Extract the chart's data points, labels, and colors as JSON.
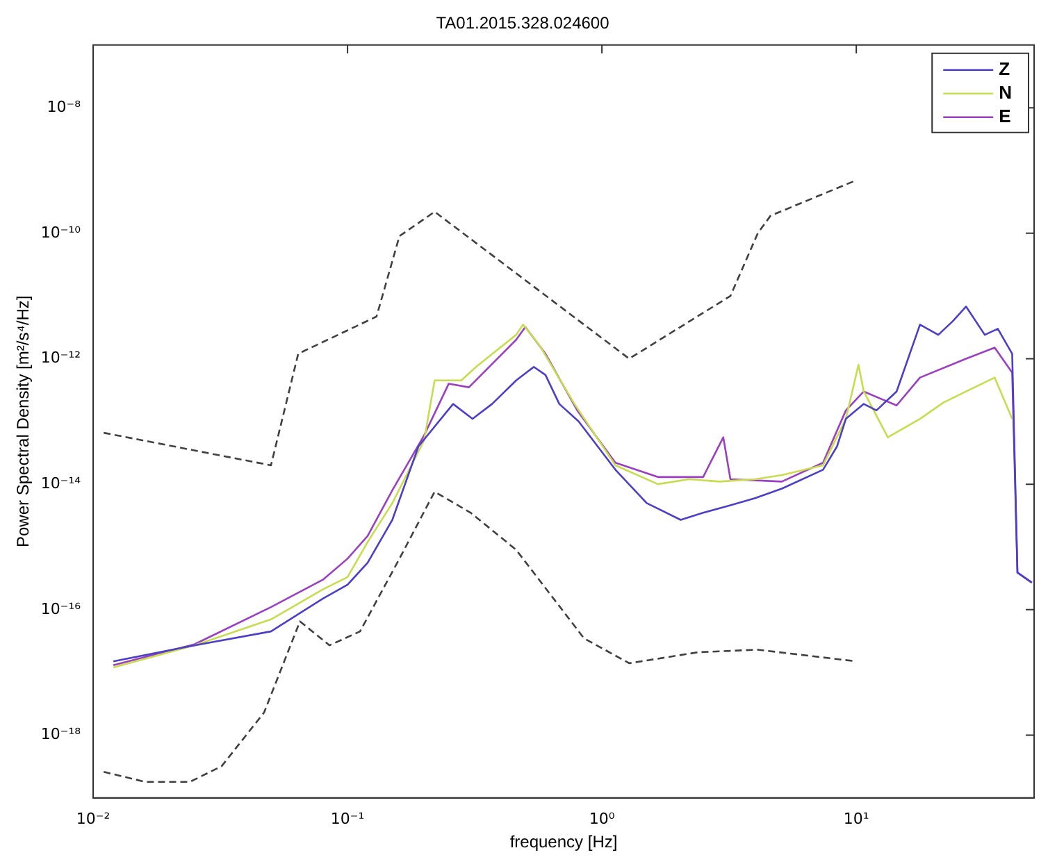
{
  "chart_data": {
    "type": "line",
    "title": "TA01.2015.328.024600",
    "xlabel": "frequency [Hz]",
    "ylabel": "Power Spectral Density [m²/s⁴/Hz]",
    "log": "xy",
    "grid": false,
    "legend": "top right",
    "marker": "none",
    "xlim": [
      0.01,
      50
    ],
    "ylim": [
      1e-19,
      1e-07
    ],
    "xticks": [
      {
        "value": 0.01,
        "label": "10⁻²"
      },
      {
        "value": 0.1,
        "label": "10⁻¹"
      },
      {
        "value": 1,
        "label": "10⁰"
      },
      {
        "value": 10,
        "label": "10¹"
      }
    ],
    "yticks": [
      {
        "value": 1e-18,
        "label": "10⁻¹⁸"
      },
      {
        "value": 1e-16,
        "label": "10⁻¹⁶"
      },
      {
        "value": 1e-14,
        "label": "10⁻¹⁴"
      },
      {
        "value": 1e-12,
        "label": "10⁻¹²"
      },
      {
        "value": 1e-10,
        "label": "10⁻¹⁰"
      },
      {
        "value": 1e-08,
        "label": "10⁻⁸"
      }
    ],
    "series": [
      {
        "name": "Z",
        "color": "#4b3fc8",
        "line_style": "solid",
        "x": [
          0.012,
          0.025,
          0.05,
          0.08,
          0.1,
          0.12,
          0.15,
          0.19,
          0.26,
          0.31,
          0.37,
          0.46,
          0.54,
          0.6,
          0.68,
          0.81,
          1.13,
          1.5,
          2.04,
          2.5,
          3.2,
          4,
          5.1,
          7.4,
          8.4,
          9.1,
          10.7,
          12,
          14.4,
          17.8,
          21,
          24,
          27,
          32,
          36,
          41,
          43,
          49
        ],
        "values": [
          1.5e-17,
          2.7e-17,
          4.5e-17,
          1.5e-16,
          2.5e-16,
          5.6e-16,
          2.7e-15,
          4e-14,
          1.9e-13,
          1.1e-13,
          1.9e-13,
          4.5e-13,
          7.4e-13,
          5.5e-13,
          1.9e-13,
          1e-13,
          1.7e-14,
          5e-15,
          2.7e-15,
          3.5e-15,
          4.6e-15,
          6e-15,
          8.5e-15,
          1.7e-14,
          4e-14,
          1.1e-13,
          1.9e-13,
          1.5e-13,
          3e-13,
          3.5e-12,
          2.4e-12,
          4e-12,
          6.8e-12,
          2.4e-12,
          3e-12,
          1.2e-12,
          3.9e-16,
          2.7e-16
        ]
      },
      {
        "name": "N",
        "color": "#c8dc50",
        "line_style": "solid",
        "x": [
          0.012,
          0.025,
          0.05,
          0.08,
          0.1,
          0.12,
          0.15,
          0.2,
          0.22,
          0.28,
          0.32,
          0.46,
          0.49,
          0.57,
          0.78,
          1.13,
          1.66,
          2.2,
          2.9,
          4,
          5.1,
          7.4,
          9.1,
          10.2,
          10.7,
          13.3,
          17.8,
          22,
          27,
          35,
          41
        ],
        "values": [
          1.2e-17,
          2.7e-17,
          7e-17,
          2.1e-16,
          3.3e-16,
          1.2e-15,
          5e-15,
          5e-14,
          4.5e-13,
          4.5e-13,
          7.4e-13,
          2.4e-12,
          3.5e-12,
          1.6e-12,
          1.9e-13,
          2e-14,
          1e-14,
          1.2e-14,
          1.1e-14,
          1.2e-14,
          1.4e-14,
          2e-14,
          1.1e-13,
          8e-13,
          3e-13,
          5.6e-14,
          1.1e-13,
          2e-13,
          3e-13,
          5e-13,
          1.1e-13
        ]
      },
      {
        "name": "E",
        "color": "#9b3fc0",
        "line_style": "solid",
        "x": [
          0.012,
          0.025,
          0.05,
          0.08,
          0.1,
          0.12,
          0.15,
          0.2,
          0.25,
          0.3,
          0.46,
          0.5,
          0.6,
          0.8,
          1.13,
          1.66,
          2.5,
          3.0,
          3.2,
          5.1,
          7.4,
          9.1,
          10.7,
          14.4,
          17.8,
          27,
          35,
          41,
          43,
          49
        ],
        "values": [
          1.3e-17,
          2.8e-17,
          1.1e-16,
          3e-16,
          6.5e-16,
          1.5e-15,
          8e-15,
          6e-14,
          4e-13,
          3.5e-13,
          2e-12,
          3.2e-12,
          1.2e-12,
          1.5e-13,
          2.2e-14,
          1.3e-14,
          1.3e-14,
          5.6e-14,
          1.2e-14,
          1.1e-14,
          2.2e-14,
          1.5e-13,
          3e-13,
          1.8e-13,
          5e-13,
          1e-12,
          1.5e-12,
          6e-13,
          3.9e-16,
          2.7e-16
        ]
      },
      {
        "color": "#404040",
        "line_style": "dashed",
        "x": [
          0.011,
          0.05,
          0.064,
          0.13,
          0.16,
          0.22,
          1.28,
          3.2,
          4.1,
          4.6,
          10
        ],
        "values": [
          6.6e-14,
          2e-14,
          1.2e-12,
          4.7e-12,
          9e-11,
          2.2e-10,
          1e-12,
          1e-11,
          1e-10,
          1.9e-10,
          7e-10
        ]
      },
      {
        "color": "#404040",
        "line_style": "dashed",
        "x": [
          0.011,
          0.016,
          0.024,
          0.032,
          0.047,
          0.065,
          0.085,
          0.112,
          0.16,
          0.22,
          0.305,
          0.46,
          0.85,
          1.28,
          2.4,
          4.1,
          10
        ],
        "values": [
          2.6e-19,
          1.8e-19,
          1.8e-19,
          3.2e-19,
          2.3e-18,
          6.5e-17,
          2.7e-17,
          4.5e-17,
          6.5e-16,
          7.6e-15,
          3.5e-15,
          9e-16,
          3.5e-17,
          1.4e-17,
          2.1e-17,
          2.3e-17,
          1.5e-17
        ]
      }
    ]
  }
}
